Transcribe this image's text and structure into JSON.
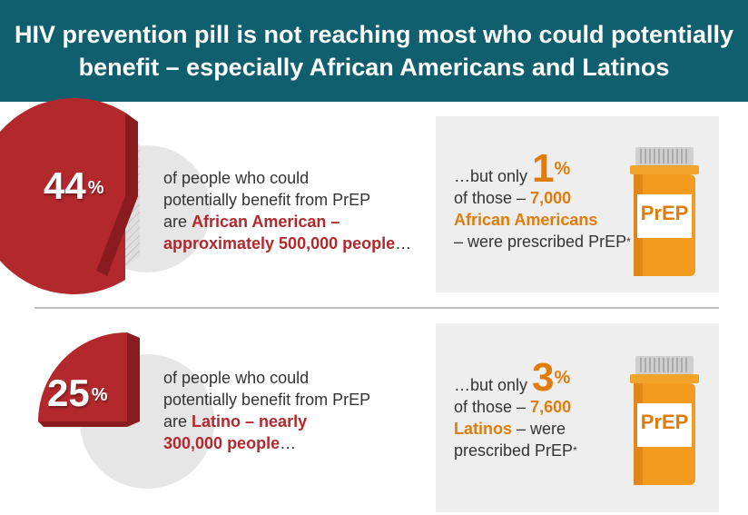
{
  "header": {
    "line1": "HIV prevention pill is not reaching most who could potentially",
    "line2": "benefit – especially African Americans and Latinos"
  },
  "colors": {
    "header_bg": "#0f5f6e",
    "pie_red": "#b2282d",
    "pie_gray": "#e6e6e6",
    "accent_orange": "#e07c0c",
    "panel_bg": "#eeeeee"
  },
  "african_american": {
    "percent_value": "44",
    "percent_sign": "%",
    "share": 0.44,
    "desc_line1": "of people who could",
    "desc_line2": "potentially benefit from PrEP",
    "desc_line3_pre": "are ",
    "desc_line3_bold": "African American",
    "desc_line3_post": " –",
    "desc_line4_bold": "approximately 500,000 people",
    "desc_line4_post": "…",
    "panel_intro": "…but only ",
    "panel_pct": "1",
    "panel_pct_sign": "%",
    "panel_line2_pre": "of those – ",
    "panel_line2_bold": "7,000",
    "panel_line3_bold": "African Americans",
    "panel_line4": "– were prescribed PrEP",
    "panel_star": "*",
    "bottle_label": "PrEP"
  },
  "latino": {
    "percent_value": "25",
    "percent_sign": "%",
    "share": 0.25,
    "desc_line1": "of people who could",
    "desc_line2": "potentially benefit from PrEP",
    "desc_line3_pre": "are ",
    "desc_line3_bold": "Latino",
    "desc_line3_mid": " – ",
    "desc_line3_bold2": "nearly",
    "desc_line4_bold": "300,000 people",
    "desc_line4_post": "…",
    "panel_intro": "…but only ",
    "panel_pct": "3",
    "panel_pct_sign": "%",
    "panel_line2_pre": "of those – ",
    "panel_line2_bold": "7,600",
    "panel_line3_bold": "Latinos",
    "panel_line3_post": " – were",
    "panel_line4": "prescribed PrEP",
    "panel_star": "*",
    "bottle_label": "PrEP"
  }
}
